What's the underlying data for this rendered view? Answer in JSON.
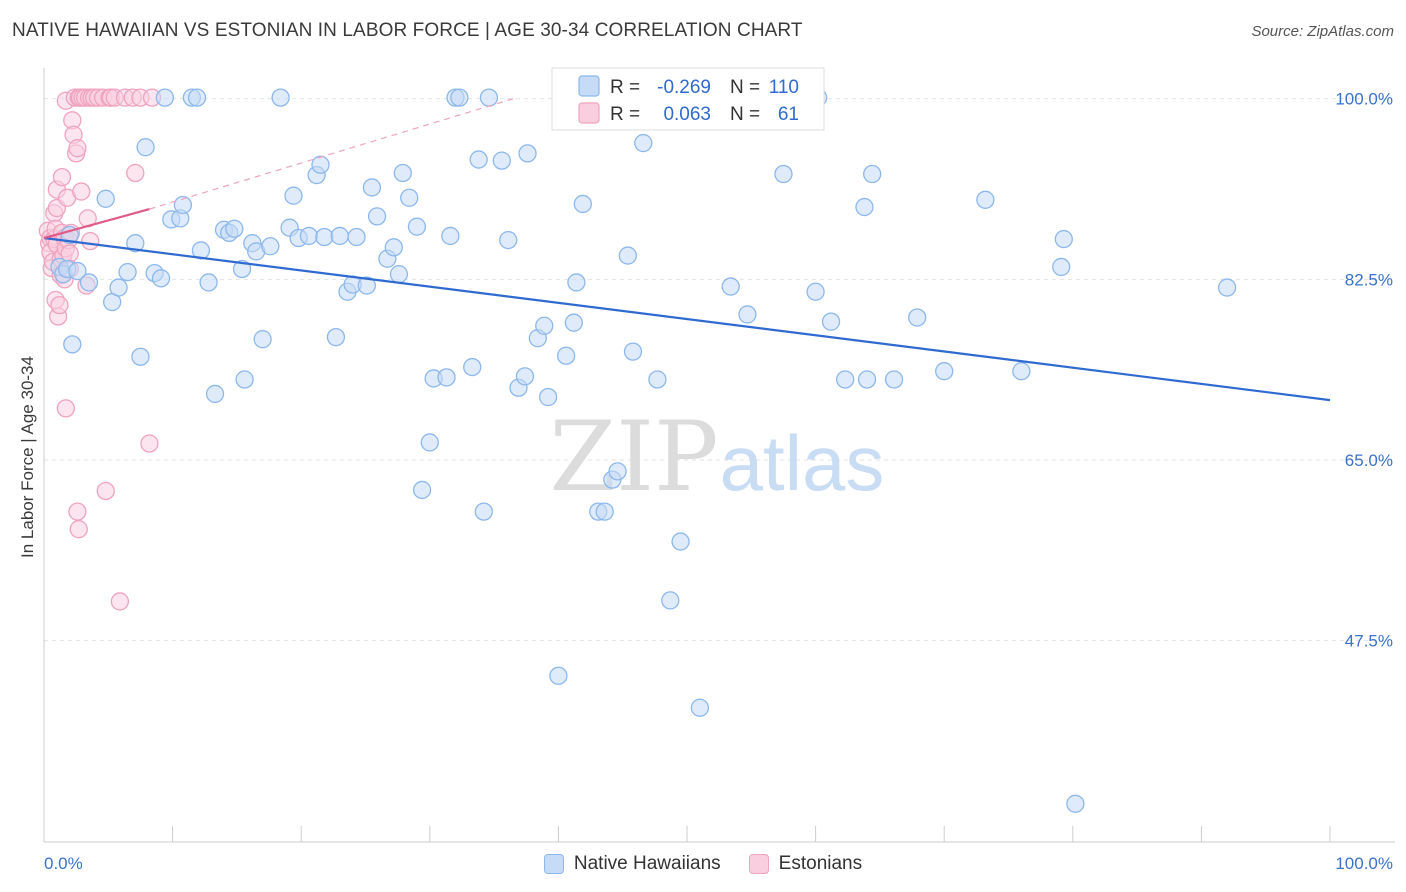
{
  "title": "NATIVE HAWAIIAN VS ESTONIAN IN LABOR FORCE | AGE 30-34 CORRELATION CHART",
  "source": "Source: ZipAtlas.com",
  "watermark": {
    "zip": "ZIP",
    "atlas": "atlas"
  },
  "stats": [
    {
      "r_label": "R =",
      "r": "-0.269",
      "n_label": "N =",
      "n": "110",
      "color": "#8db8ec",
      "fill": "#c5dbf6"
    },
    {
      "r_label": "R =",
      "r": "0.063",
      "n_label": "N =",
      "n": "61",
      "color": "#f0a3bf",
      "fill": "#f9cfe0"
    }
  ],
  "legend": [
    {
      "name": "Native Hawaiians",
      "fill": "#c5dbf6",
      "stroke": "#8db8ec"
    },
    {
      "name": "Estonians",
      "fill": "#f9cfe0",
      "stroke": "#f0a3bf"
    }
  ],
  "chart_data": {
    "type": "scatter",
    "title": "NATIVE HAWAIIAN VS ESTONIAN IN LABOR FORCE | AGE 30-34 CORRELATION CHART",
    "xlabel": "",
    "ylabel": "In Labor Force | Age 30-34",
    "xlim": [
      0,
      100
    ],
    "ylim": [
      28,
      102
    ],
    "x_tick_labels": [
      "0.0%",
      "100.0%"
    ],
    "y_ticks": [
      100.0,
      82.5,
      65.0,
      47.5
    ],
    "y_tick_labels": [
      "100.0%",
      "82.5%",
      "65.0%",
      "47.5%"
    ],
    "grid": true,
    "series": [
      {
        "name": "Native Hawaiians",
        "color": "#8db8ec",
        "fill": "#c5dbf6",
        "trend_color": "#2f6ad0",
        "trend": {
          "x0": 0,
          "y0": 86.5,
          "x1": 100,
          "y1": 70.8
        },
        "points": [
          [
            1.2,
            83.7
          ],
          [
            1.5,
            83.0
          ],
          [
            1.8,
            83.5
          ],
          [
            2.0,
            86.8
          ],
          [
            2.2,
            76.2
          ],
          [
            2.6,
            83.3
          ],
          [
            3.5,
            82.2
          ],
          [
            4.8,
            90.3
          ],
          [
            5.3,
            80.3
          ],
          [
            5.8,
            81.7
          ],
          [
            6.5,
            83.2
          ],
          [
            7.1,
            86.0
          ],
          [
            7.5,
            75.0
          ],
          [
            7.9,
            95.3
          ],
          [
            8.6,
            83.1
          ],
          [
            9.1,
            82.6
          ],
          [
            9.4,
            100.1
          ],
          [
            9.9,
            88.3
          ],
          [
            10.6,
            88.4
          ],
          [
            10.8,
            89.7
          ],
          [
            11.5,
            100.1
          ],
          [
            11.9,
            100.1
          ],
          [
            12.2,
            85.3
          ],
          [
            12.8,
            82.2
          ],
          [
            13.3,
            71.4
          ],
          [
            14.0,
            87.3
          ],
          [
            14.4,
            87.0
          ],
          [
            14.8,
            87.4
          ],
          [
            15.4,
            83.5
          ],
          [
            15.6,
            72.8
          ],
          [
            16.2,
            86.0
          ],
          [
            16.5,
            85.2
          ],
          [
            17.0,
            76.7
          ],
          [
            17.6,
            85.7
          ],
          [
            18.4,
            100.1
          ],
          [
            19.1,
            87.5
          ],
          [
            19.4,
            90.6
          ],
          [
            19.8,
            86.5
          ],
          [
            20.6,
            86.7
          ],
          [
            21.2,
            92.6
          ],
          [
            21.5,
            93.6
          ],
          [
            21.8,
            86.6
          ],
          [
            22.7,
            76.9
          ],
          [
            23.0,
            86.7
          ],
          [
            23.6,
            81.3
          ],
          [
            24.0,
            82.0
          ],
          [
            24.3,
            86.6
          ],
          [
            25.1,
            81.9
          ],
          [
            25.5,
            91.4
          ],
          [
            25.9,
            88.6
          ],
          [
            26.7,
            84.5
          ],
          [
            27.2,
            85.6
          ],
          [
            27.6,
            83.0
          ],
          [
            27.9,
            92.8
          ],
          [
            28.4,
            90.4
          ],
          [
            29.0,
            87.6
          ],
          [
            29.4,
            62.1
          ],
          [
            30.0,
            66.7
          ],
          [
            30.3,
            72.9
          ],
          [
            31.3,
            73.0
          ],
          [
            31.6,
            86.7
          ],
          [
            32.0,
            100.1
          ],
          [
            32.3,
            100.1
          ],
          [
            33.3,
            74.0
          ],
          [
            33.8,
            94.1
          ],
          [
            34.2,
            60.0
          ],
          [
            34.6,
            100.1
          ],
          [
            35.6,
            94.0
          ],
          [
            36.1,
            86.3
          ],
          [
            36.9,
            72.0
          ],
          [
            37.4,
            73.1
          ],
          [
            37.6,
            94.7
          ],
          [
            38.4,
            76.8
          ],
          [
            38.9,
            78.0
          ],
          [
            39.2,
            71.1
          ],
          [
            40.0,
            44.1
          ],
          [
            40.6,
            75.1
          ],
          [
            41.2,
            78.3
          ],
          [
            41.4,
            82.2
          ],
          [
            41.9,
            89.8
          ],
          [
            43.1,
            60.0
          ],
          [
            43.6,
            60.0
          ],
          [
            44.2,
            63.1
          ],
          [
            44.6,
            63.9
          ],
          [
            45.4,
            84.8
          ],
          [
            45.8,
            75.5
          ],
          [
            46.6,
            95.7
          ],
          [
            47.7,
            72.8
          ],
          [
            48.7,
            51.4
          ],
          [
            49.5,
            57.1
          ],
          [
            51.0,
            41.0
          ],
          [
            53.4,
            81.8
          ],
          [
            54.7,
            79.1
          ],
          [
            57.5,
            92.7
          ],
          [
            60.2,
            100.1
          ],
          [
            60.0,
            81.3
          ],
          [
            61.2,
            78.4
          ],
          [
            62.3,
            72.8
          ],
          [
            63.8,
            89.5
          ],
          [
            64.0,
            72.8
          ],
          [
            64.4,
            92.7
          ],
          [
            66.1,
            72.8
          ],
          [
            67.9,
            78.8
          ],
          [
            70.0,
            73.6
          ],
          [
            73.2,
            90.2
          ],
          [
            76.0,
            73.6
          ],
          [
            79.1,
            83.7
          ],
          [
            79.3,
            86.4
          ],
          [
            80.2,
            31.7
          ],
          [
            92.0,
            81.7
          ]
        ]
      },
      {
        "name": "Estonians",
        "color": "#f0a3bf",
        "fill": "#f9cfe0",
        "trend_color": "#e05a8a",
        "trend": {
          "x0": 0,
          "y0": 86.5,
          "x1": 8.2,
          "y1": 89.3
        },
        "trend_dashed": {
          "x0": 8.2,
          "y0": 89.3,
          "x1": 36.5,
          "y1": 100.0
        },
        "points": [
          [
            0.3,
            87.2
          ],
          [
            0.4,
            86.0
          ],
          [
            0.5,
            86.5
          ],
          [
            0.5,
            85.1
          ],
          [
            0.6,
            83.6
          ],
          [
            0.7,
            84.2
          ],
          [
            0.8,
            86.4
          ],
          [
            0.8,
            88.9
          ],
          [
            0.9,
            80.5
          ],
          [
            0.9,
            87.4
          ],
          [
            1.0,
            85.9
          ],
          [
            1.0,
            89.4
          ],
          [
            1.0,
            91.2
          ],
          [
            1.1,
            78.9
          ],
          [
            1.2,
            80.0
          ],
          [
            1.3,
            84.5
          ],
          [
            1.3,
            82.9
          ],
          [
            1.4,
            87.0
          ],
          [
            1.4,
            92.4
          ],
          [
            1.5,
            84.8
          ],
          [
            1.6,
            82.5
          ],
          [
            1.6,
            86.5
          ],
          [
            1.7,
            85.5
          ],
          [
            1.7,
            99.8
          ],
          [
            1.7,
            70.0
          ],
          [
            1.8,
            90.4
          ],
          [
            1.9,
            86.3
          ],
          [
            2.0,
            85.0
          ],
          [
            2.0,
            83.5
          ],
          [
            2.1,
            87.0
          ],
          [
            2.2,
            97.9
          ],
          [
            2.3,
            96.5
          ],
          [
            2.4,
            100.1
          ],
          [
            2.5,
            94.7
          ],
          [
            2.6,
            95.2
          ],
          [
            2.6,
            60.0
          ],
          [
            2.7,
            100.1
          ],
          [
            2.7,
            58.3
          ],
          [
            2.8,
            100.1
          ],
          [
            2.9,
            91.0
          ],
          [
            3.0,
            100.1
          ],
          [
            3.2,
            100.1
          ],
          [
            3.3,
            81.9
          ],
          [
            3.4,
            88.4
          ],
          [
            3.5,
            100.1
          ],
          [
            3.6,
            86.2
          ],
          [
            3.7,
            100.1
          ],
          [
            3.9,
            100.1
          ],
          [
            4.2,
            100.1
          ],
          [
            4.6,
            100.1
          ],
          [
            4.8,
            62.0
          ],
          [
            5.1,
            100.1
          ],
          [
            5.2,
            100.1
          ],
          [
            5.5,
            100.1
          ],
          [
            5.9,
            51.3
          ],
          [
            6.3,
            100.1
          ],
          [
            6.9,
            100.1
          ],
          [
            7.1,
            92.8
          ],
          [
            7.5,
            100.1
          ],
          [
            8.2,
            66.6
          ],
          [
            8.4,
            100.1
          ]
        ]
      }
    ]
  }
}
